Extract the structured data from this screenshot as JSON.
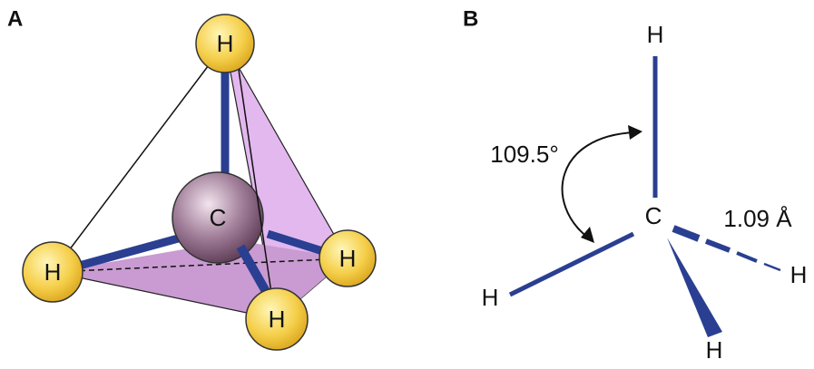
{
  "panels": [
    {
      "label": "A",
      "atoms": [
        {
          "label": "H"
        },
        {
          "label": "C"
        },
        {
          "label": "H"
        },
        {
          "label": "H"
        },
        {
          "label": "H"
        }
      ]
    },
    {
      "label": "B",
      "atoms": [
        {
          "label": "H"
        },
        {
          "label": "C"
        },
        {
          "label": "H"
        },
        {
          "label": "H"
        },
        {
          "label": "H"
        }
      ],
      "angle_label": "109.5°",
      "bond_length_label": "1.09 Å"
    }
  ]
}
